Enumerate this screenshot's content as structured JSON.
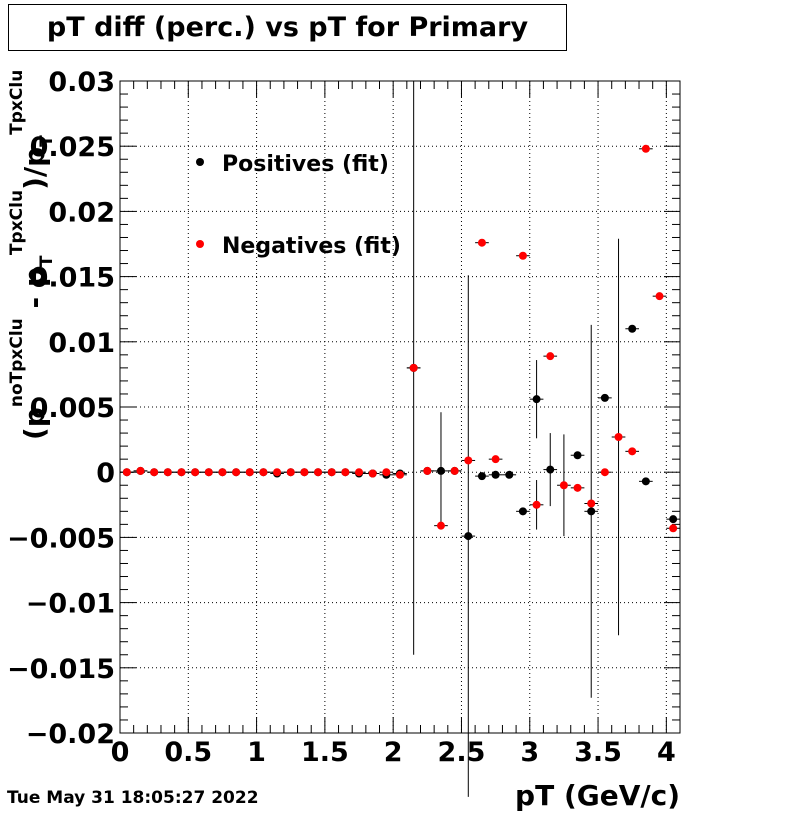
{
  "title": "pT diff (perc.) vs pT for Primary",
  "timestamp": "Tue May 31 18:05:27 2022",
  "chart_data": {
    "type": "scatter",
    "title": "pT diff (perc.) vs pT for Primary",
    "xlabel": "pT (GeV/c)",
    "ylabel": {
      "base": "(p",
      "sup1": "noTpxClu",
      "mid1": " - p",
      "sub2": "T",
      "sup2": "TpxClu",
      "mid2": ")/p",
      "sub3": "T",
      "sup3": "TpxClu"
    },
    "xlim": [
      0,
      4.1
    ],
    "ylim": [
      -0.02,
      0.03
    ],
    "xticks": [
      {
        "v": 0,
        "label": "0"
      },
      {
        "v": 0.5,
        "label": "0.5"
      },
      {
        "v": 1,
        "label": "1"
      },
      {
        "v": 1.5,
        "label": "1.5"
      },
      {
        "v": 2,
        "label": "2"
      },
      {
        "v": 2.5,
        "label": "2.5"
      },
      {
        "v": 3,
        "label": "3"
      },
      {
        "v": 3.5,
        "label": "3.5"
      },
      {
        "v": 4,
        "label": "4"
      }
    ],
    "yticks": [
      {
        "v": 0.03,
        "label": "0.03"
      },
      {
        "v": 0.025,
        "label": "0.025"
      },
      {
        "v": 0.02,
        "label": "0.02"
      },
      {
        "v": 0.015,
        "label": "0.015"
      },
      {
        "v": 0.01,
        "label": "0.01"
      },
      {
        "v": 0.005,
        "label": "0.005"
      },
      {
        "v": 0,
        "label": "0"
      },
      {
        "v": -0.005,
        "label": "−0.005"
      },
      {
        "v": -0.01,
        "label": "−0.01"
      },
      {
        "v": -0.015,
        "label": "−0.015"
      },
      {
        "v": -0.02,
        "label": "−0.02"
      }
    ],
    "grid": true,
    "legend_position": "top-left",
    "series": [
      {
        "name": "Positives (fit)",
        "color": "#000000",
        "points": [
          {
            "x": 0.05,
            "y": 0.0
          },
          {
            "x": 0.15,
            "y": 0.0001
          },
          {
            "x": 0.25,
            "y": 0.0
          },
          {
            "x": 0.35,
            "y": 0.0
          },
          {
            "x": 0.45,
            "y": 0.0
          },
          {
            "x": 0.55,
            "y": 0.0
          },
          {
            "x": 0.65,
            "y": 0.0
          },
          {
            "x": 0.75,
            "y": 0.0
          },
          {
            "x": 0.85,
            "y": 0.0
          },
          {
            "x": 0.95,
            "y": 0.0
          },
          {
            "x": 1.05,
            "y": 0.0
          },
          {
            "x": 1.15,
            "y": -0.0001
          },
          {
            "x": 1.25,
            "y": 0.0
          },
          {
            "x": 1.35,
            "y": 0.0
          },
          {
            "x": 1.45,
            "y": 0.0
          },
          {
            "x": 1.55,
            "y": 0.0
          },
          {
            "x": 1.65,
            "y": 0.0
          },
          {
            "x": 1.75,
            "y": -0.0001
          },
          {
            "x": 1.85,
            "y": -0.0001
          },
          {
            "x": 1.95,
            "y": -0.0002
          },
          {
            "x": 2.05,
            "y": -0.0001
          },
          {
            "x": 2.15,
            "y": 0.008,
            "err": 0.022
          },
          {
            "x": 2.25,
            "y": 0.0001
          },
          {
            "x": 2.35,
            "y": 0.0001,
            "err": 0.0045
          },
          {
            "x": 2.45,
            "y": 0.0001
          },
          {
            "x": 2.55,
            "y": -0.0049,
            "err": 0.02
          },
          {
            "x": 2.65,
            "y": -0.0003
          },
          {
            "x": 2.75,
            "y": -0.0002
          },
          {
            "x": 2.85,
            "y": -0.0002
          },
          {
            "x": 2.95,
            "y": -0.003
          },
          {
            "x": 3.05,
            "y": 0.0056,
            "err": 0.003
          },
          {
            "x": 3.15,
            "y": 0.0002,
            "err": 0.0028
          },
          {
            "x": 3.35,
            "y": 0.0013
          },
          {
            "x": 3.45,
            "y": -0.003,
            "err": 0.0143
          },
          {
            "x": 3.55,
            "y": 0.0057
          },
          {
            "x": 3.75,
            "y": 0.011
          },
          {
            "x": 3.85,
            "y": -0.0007
          },
          {
            "x": 4.05,
            "y": -0.0036
          }
        ]
      },
      {
        "name": "Negatives (fit)",
        "color": "#ff0000",
        "points": [
          {
            "x": 0.05,
            "y": 0.0
          },
          {
            "x": 0.15,
            "y": 0.0001
          },
          {
            "x": 0.25,
            "y": 0.0
          },
          {
            "x": 0.35,
            "y": 0.0
          },
          {
            "x": 0.45,
            "y": 0.0
          },
          {
            "x": 0.55,
            "y": 0.0
          },
          {
            "x": 0.65,
            "y": 0.0
          },
          {
            "x": 0.75,
            "y": 0.0
          },
          {
            "x": 0.85,
            "y": 0.0
          },
          {
            "x": 0.95,
            "y": 0.0
          },
          {
            "x": 1.05,
            "y": 0.0
          },
          {
            "x": 1.15,
            "y": 0.0
          },
          {
            "x": 1.25,
            "y": 0.0
          },
          {
            "x": 1.35,
            "y": 0.0
          },
          {
            "x": 1.45,
            "y": 0.0
          },
          {
            "x": 1.55,
            "y": 0.0
          },
          {
            "x": 1.65,
            "y": 0.0
          },
          {
            "x": 1.75,
            "y": 0.0
          },
          {
            "x": 1.85,
            "y": -0.0001
          },
          {
            "x": 1.95,
            "y": 0.0
          },
          {
            "x": 2.05,
            "y": -0.0002
          },
          {
            "x": 2.15,
            "y": 0.008
          },
          {
            "x": 2.25,
            "y": 0.0001
          },
          {
            "x": 2.35,
            "y": -0.0041
          },
          {
            "x": 2.45,
            "y": 0.0001
          },
          {
            "x": 2.55,
            "y": 0.0009
          },
          {
            "x": 2.65,
            "y": 0.0176
          },
          {
            "x": 2.75,
            "y": 0.001
          },
          {
            "x": 2.95,
            "y": 0.0166
          },
          {
            "x": 3.05,
            "y": -0.0025,
            "err": 0.0019
          },
          {
            "x": 3.15,
            "y": 0.0089
          },
          {
            "x": 3.25,
            "y": -0.001,
            "err": 0.0039
          },
          {
            "x": 3.35,
            "y": -0.0012
          },
          {
            "x": 3.45,
            "y": -0.0024
          },
          {
            "x": 3.55,
            "y": 0.0
          },
          {
            "x": 3.65,
            "y": 0.0027,
            "err": 0.0152
          },
          {
            "x": 3.75,
            "y": 0.0016
          },
          {
            "x": 3.85,
            "y": 0.0248
          },
          {
            "x": 3.95,
            "y": 0.0135
          },
          {
            "x": 4.05,
            "y": -0.0043
          }
        ]
      }
    ]
  }
}
